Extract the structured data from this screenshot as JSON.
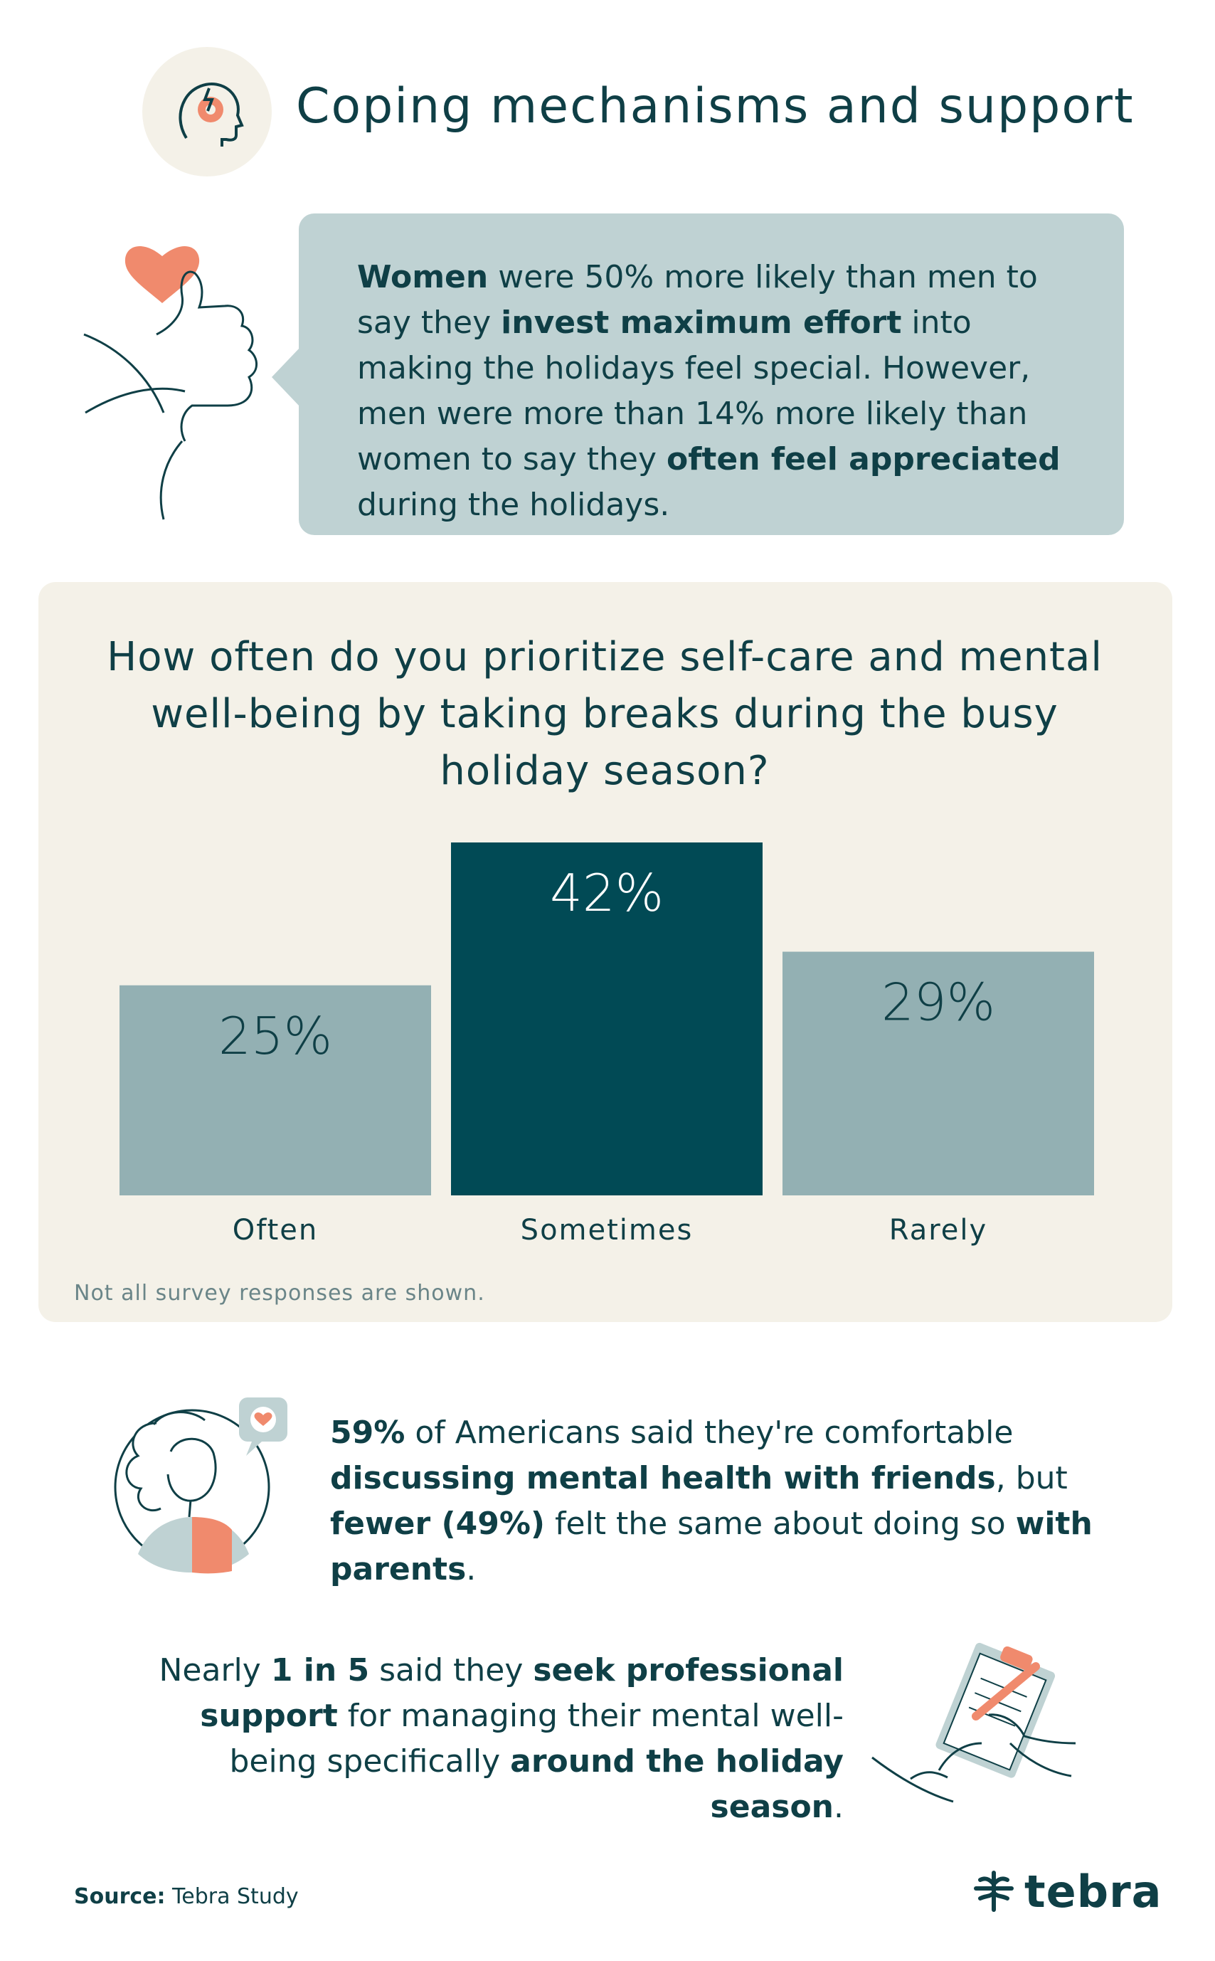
{
  "header": {
    "title": "Coping mechanisms and support",
    "icon": "head-gear-icon"
  },
  "callout": {
    "icon": "heart-thumbs-up-icon",
    "p1_bold": "Women",
    "p1_rest": " were 50% more likely than men to say they ",
    "p2_bold": "invest maximum effort",
    "p2_rest": " into making the holidays feel special. However, men were more than 14% more likely than women to say they ",
    "p3_bold": "often feel appreciated",
    "p3_rest": " during the holidays."
  },
  "chart_data": {
    "type": "bar",
    "title": "How often do you prioritize self-care and mental well-being by taking breaks during the busy holiday season?",
    "categories": [
      "Often",
      "Sometimes",
      "Rarely"
    ],
    "values": [
      25,
      42,
      29
    ],
    "value_labels": [
      "25%",
      "42%",
      "29%"
    ],
    "ylim": [
      0,
      42
    ],
    "highlight_index": 1,
    "colors": {
      "default": "#93b0b3",
      "highlight": "#014a55",
      "label_default": "#0f3f46",
      "label_highlight": "#ffffff"
    },
    "note": "Not all survey responses are shown.",
    "grid": false
  },
  "friends_stat": {
    "icon": "person-speech-heart-icon",
    "b1": "59%",
    "t1": " of Americans said they're comfortable ",
    "b2": "discussing mental health with friends",
    "t2": ", but ",
    "b3": "fewer (49%)",
    "t3": " felt the same about doing so ",
    "b4": "with parents",
    "t4": "."
  },
  "pro_stat": {
    "icon": "clipboard-pen-icon",
    "t1": "Nearly ",
    "b1": "1 in 5",
    "t2": " said they ",
    "b2": "seek professional support",
    "t3": " for managing their mental well-being specifically ",
    "b3": "around the holiday season",
    "t4": "."
  },
  "footer": {
    "source_label": "Source:",
    "source_value": " Tebra Study",
    "logo_text": "tebra",
    "logo_icon": "tebra-leaf-icon"
  }
}
